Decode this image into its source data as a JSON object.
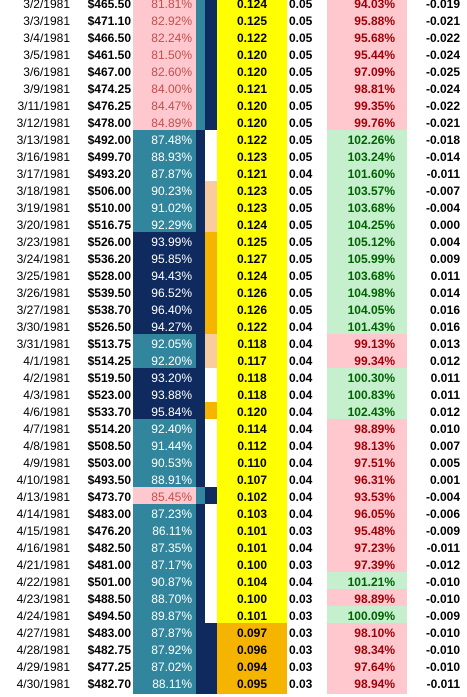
{
  "colors": {
    "pink_bg": "#ffc7ce",
    "pink_fg": "#c0504d",
    "teal_bg": "#31859c",
    "navy_bg": "#0f2a5e",
    "light_fg": "#ffffff",
    "yellow_bg": "#ffff00",
    "orange_bg": "#f4b400",
    "peach_bg": "#f8cba0",
    "green_bg": "#c6efce",
    "green_fg": "#006100",
    "red_fg": "#9c0006",
    "white": "#ffffff",
    "black": "#000000"
  },
  "rows": [
    {
      "date": "3/2/1981",
      "price": "$465.50",
      "pct": "81.81%",
      "pctStyle": "pink",
      "band1": "teal",
      "band2": "navy",
      "ratio": "0.124",
      "ratioStyle": "yellow",
      "small": "0.05",
      "pct2": "94.03%",
      "pct2Style": "pink",
      "delta": "-0.019"
    },
    {
      "date": "3/3/1981",
      "price": "$471.10",
      "pct": "82.92%",
      "pctStyle": "pink",
      "band1": "teal",
      "band2": "navy",
      "ratio": "0.125",
      "ratioStyle": "yellow",
      "small": "0.05",
      "pct2": "95.88%",
      "pct2Style": "pink",
      "delta": "-0.021"
    },
    {
      "date": "3/4/1981",
      "price": "$466.50",
      "pct": "82.24%",
      "pctStyle": "pink",
      "band1": "teal",
      "band2": "navy",
      "ratio": "0.122",
      "ratioStyle": "yellow",
      "small": "0.05",
      "pct2": "95.68%",
      "pct2Style": "pink",
      "delta": "-0.022"
    },
    {
      "date": "3/5/1981",
      "price": "$461.50",
      "pct": "81.50%",
      "pctStyle": "pink",
      "band1": "teal",
      "band2": "navy",
      "ratio": "0.120",
      "ratioStyle": "yellow",
      "small": "0.05",
      "pct2": "95.44%",
      "pct2Style": "pink",
      "delta": "-0.024"
    },
    {
      "date": "3/6/1981",
      "price": "$467.00",
      "pct": "82.60%",
      "pctStyle": "pink",
      "band1": "teal",
      "band2": "navy",
      "ratio": "0.120",
      "ratioStyle": "yellow",
      "small": "0.05",
      "pct2": "97.09%",
      "pct2Style": "pink",
      "delta": "-0.025"
    },
    {
      "date": "3/9/1981",
      "price": "$474.25",
      "pct": "84.00%",
      "pctStyle": "pink",
      "band1": "teal",
      "band2": "navy",
      "ratio": "0.121",
      "ratioStyle": "yellow",
      "small": "0.05",
      "pct2": "98.81%",
      "pct2Style": "pink",
      "delta": "-0.024"
    },
    {
      "date": "3/11/1981",
      "price": "$476.25",
      "pct": "84.47%",
      "pctStyle": "pink",
      "band1": "teal",
      "band2": "navy",
      "ratio": "0.120",
      "ratioStyle": "yellow",
      "small": "0.05",
      "pct2": "99.35%",
      "pct2Style": "pink",
      "delta": "-0.022"
    },
    {
      "date": "3/12/1981",
      "price": "$478.00",
      "pct": "84.89%",
      "pctStyle": "pink",
      "band1": "teal",
      "band2": "navy",
      "ratio": "0.120",
      "ratioStyle": "yellow",
      "small": "0.05",
      "pct2": "99.76%",
      "pct2Style": "pink",
      "delta": "-0.021"
    },
    {
      "date": "3/13/1981",
      "price": "$492.00",
      "pct": "87.48%",
      "pctStyle": "teal",
      "band1": "navy",
      "band2": "white",
      "ratio": "0.122",
      "ratioStyle": "yellow",
      "small": "0.05",
      "pct2": "102.26%",
      "pct2Style": "green",
      "delta": "-0.018"
    },
    {
      "date": "3/16/1981",
      "price": "$499.70",
      "pct": "88.93%",
      "pctStyle": "teal",
      "band1": "navy",
      "band2": "white",
      "ratio": "0.123",
      "ratioStyle": "yellow",
      "small": "0.05",
      "pct2": "103.24%",
      "pct2Style": "green",
      "delta": "-0.014"
    },
    {
      "date": "3/17/1981",
      "price": "$493.20",
      "pct": "87.87%",
      "pctStyle": "teal",
      "band1": "navy",
      "band2": "white",
      "ratio": "0.121",
      "ratioStyle": "yellow",
      "small": "0.04",
      "pct2": "101.60%",
      "pct2Style": "green",
      "delta": "-0.011"
    },
    {
      "date": "3/18/1981",
      "price": "$506.00",
      "pct": "90.23%",
      "pctStyle": "teal",
      "band1": "navy",
      "band2": "peach",
      "ratio": "0.123",
      "ratioStyle": "yellow",
      "small": "0.05",
      "pct2": "103.57%",
      "pct2Style": "green",
      "delta": "-0.007"
    },
    {
      "date": "3/19/1981",
      "price": "$510.00",
      "pct": "91.02%",
      "pctStyle": "teal",
      "band1": "navy",
      "band2": "peach",
      "ratio": "0.123",
      "ratioStyle": "yellow",
      "small": "0.05",
      "pct2": "103.68%",
      "pct2Style": "green",
      "delta": "-0.004"
    },
    {
      "date": "3/20/1981",
      "price": "$516.75",
      "pct": "92.29%",
      "pctStyle": "teal",
      "band1": "navy",
      "band2": "peach",
      "ratio": "0.124",
      "ratioStyle": "yellow",
      "small": "0.05",
      "pct2": "104.25%",
      "pct2Style": "green",
      "delta": "0.000"
    },
    {
      "date": "3/23/1981",
      "price": "$526.00",
      "pct": "93.99%",
      "pctStyle": "navy",
      "band1": "navy",
      "band2": "orange",
      "ratio": "0.125",
      "ratioStyle": "yellow",
      "small": "0.05",
      "pct2": "105.12%",
      "pct2Style": "green",
      "delta": "0.004"
    },
    {
      "date": "3/24/1981",
      "price": "$536.20",
      "pct": "95.85%",
      "pctStyle": "navy",
      "band1": "navy",
      "band2": "orange",
      "ratio": "0.127",
      "ratioStyle": "yellow",
      "small": "0.05",
      "pct2": "105.99%",
      "pct2Style": "green",
      "delta": "0.009"
    },
    {
      "date": "3/25/1981",
      "price": "$528.00",
      "pct": "94.43%",
      "pctStyle": "navy",
      "band1": "navy",
      "band2": "orange",
      "ratio": "0.124",
      "ratioStyle": "yellow",
      "small": "0.05",
      "pct2": "103.68%",
      "pct2Style": "green",
      "delta": "0.011"
    },
    {
      "date": "3/26/1981",
      "price": "$539.50",
      "pct": "96.52%",
      "pctStyle": "navy",
      "band1": "navy",
      "band2": "orange",
      "ratio": "0.126",
      "ratioStyle": "yellow",
      "small": "0.05",
      "pct2": "104.98%",
      "pct2Style": "green",
      "delta": "0.014"
    },
    {
      "date": "3/27/1981",
      "price": "$538.70",
      "pct": "96.40%",
      "pctStyle": "navy",
      "band1": "navy",
      "band2": "orange",
      "ratio": "0.126",
      "ratioStyle": "yellow",
      "small": "0.05",
      "pct2": "104.05%",
      "pct2Style": "green",
      "delta": "0.016"
    },
    {
      "date": "3/30/1981",
      "price": "$526.50",
      "pct": "94.27%",
      "pctStyle": "navy",
      "band1": "navy",
      "band2": "orange",
      "ratio": "0.122",
      "ratioStyle": "yellow",
      "small": "0.04",
      "pct2": "101.43%",
      "pct2Style": "green",
      "delta": "0.016"
    },
    {
      "date": "3/31/1981",
      "price": "$513.75",
      "pct": "92.05%",
      "pctStyle": "teal",
      "band1": "navy",
      "band2": "peach",
      "ratio": "0.118",
      "ratioStyle": "yellow",
      "small": "0.04",
      "pct2": "99.13%",
      "pct2Style": "pink",
      "delta": "0.013"
    },
    {
      "date": "4/1/1981",
      "price": "$514.25",
      "pct": "92.20%",
      "pctStyle": "teal",
      "band1": "navy",
      "band2": "peach",
      "ratio": "0.117",
      "ratioStyle": "yellow",
      "small": "0.04",
      "pct2": "99.34%",
      "pct2Style": "pink",
      "delta": "0.012"
    },
    {
      "date": "4/2/1981",
      "price": "$519.50",
      "pct": "93.20%",
      "pctStyle": "navy",
      "band1": "navy",
      "band2": "white",
      "ratio": "0.118",
      "ratioStyle": "yellow",
      "small": "0.04",
      "pct2": "100.30%",
      "pct2Style": "green",
      "delta": "0.011"
    },
    {
      "date": "4/3/1981",
      "price": "$523.00",
      "pct": "93.88%",
      "pctStyle": "navy",
      "band1": "navy",
      "band2": "white",
      "ratio": "0.118",
      "ratioStyle": "yellow",
      "small": "0.04",
      "pct2": "100.83%",
      "pct2Style": "green",
      "delta": "0.011"
    },
    {
      "date": "4/6/1981",
      "price": "$533.70",
      "pct": "95.84%",
      "pctStyle": "navy",
      "band1": "navy",
      "band2": "orange",
      "ratio": "0.120",
      "ratioStyle": "yellow",
      "small": "0.04",
      "pct2": "102.43%",
      "pct2Style": "green",
      "delta": "0.012"
    },
    {
      "date": "4/7/1981",
      "price": "$514.20",
      "pct": "92.40%",
      "pctStyle": "teal",
      "band1": "navy",
      "band2": "white",
      "ratio": "0.114",
      "ratioStyle": "yellow",
      "small": "0.04",
      "pct2": "98.89%",
      "pct2Style": "pink",
      "delta": "0.010"
    },
    {
      "date": "4/8/1981",
      "price": "$508.50",
      "pct": "91.44%",
      "pctStyle": "teal",
      "band1": "navy",
      "band2": "white",
      "ratio": "0.112",
      "ratioStyle": "yellow",
      "small": "0.04",
      "pct2": "98.13%",
      "pct2Style": "pink",
      "delta": "0.007"
    },
    {
      "date": "4/9/1981",
      "price": "$503.00",
      "pct": "90.53%",
      "pctStyle": "teal",
      "band1": "navy",
      "band2": "white",
      "ratio": "0.110",
      "ratioStyle": "yellow",
      "small": "0.04",
      "pct2": "97.51%",
      "pct2Style": "pink",
      "delta": "0.005"
    },
    {
      "date": "4/10/1981",
      "price": "$493.50",
      "pct": "88.91%",
      "pctStyle": "teal",
      "band1": "navy",
      "band2": "white",
      "ratio": "0.107",
      "ratioStyle": "yellow",
      "small": "0.04",
      "pct2": "96.31%",
      "pct2Style": "pink",
      "delta": "0.001"
    },
    {
      "date": "4/13/1981",
      "price": "$473.70",
      "pct": "85.45%",
      "pctStyle": "pink",
      "band1": "teal",
      "band2": "navy",
      "ratio": "0.102",
      "ratioStyle": "yellow",
      "small": "0.04",
      "pct2": "93.53%",
      "pct2Style": "pink",
      "delta": "-0.004"
    },
    {
      "date": "4/14/1981",
      "price": "$483.00",
      "pct": "87.23%",
      "pctStyle": "teal",
      "band1": "navy",
      "band2": "white",
      "ratio": "0.103",
      "ratioStyle": "yellow",
      "small": "0.04",
      "pct2": "96.05%",
      "pct2Style": "pink",
      "delta": "-0.006"
    },
    {
      "date": "4/15/1981",
      "price": "$476.20",
      "pct": "86.11%",
      "pctStyle": "teal",
      "band1": "navy",
      "band2": "white",
      "ratio": "0.101",
      "ratioStyle": "yellow",
      "small": "0.03",
      "pct2": "95.48%",
      "pct2Style": "pink",
      "delta": "-0.009"
    },
    {
      "date": "4/16/1981",
      "price": "$482.50",
      "pct": "87.35%",
      "pctStyle": "teal",
      "band1": "navy",
      "band2": "white",
      "ratio": "0.101",
      "ratioStyle": "yellow",
      "small": "0.04",
      "pct2": "97.23%",
      "pct2Style": "pink",
      "delta": "-0.011"
    },
    {
      "date": "4/21/1981",
      "price": "$481.00",
      "pct": "87.17%",
      "pctStyle": "teal",
      "band1": "navy",
      "band2": "white",
      "ratio": "0.100",
      "ratioStyle": "yellow",
      "small": "0.03",
      "pct2": "97.39%",
      "pct2Style": "pink",
      "delta": "-0.012"
    },
    {
      "date": "4/22/1981",
      "price": "$501.00",
      "pct": "90.87%",
      "pctStyle": "teal",
      "band1": "navy",
      "band2": "white",
      "ratio": "0.104",
      "ratioStyle": "yellow",
      "small": "0.04",
      "pct2": "101.21%",
      "pct2Style": "green",
      "delta": "-0.010"
    },
    {
      "date": "4/23/1981",
      "price": "$488.50",
      "pct": "88.70%",
      "pctStyle": "teal",
      "band1": "navy",
      "band2": "white",
      "ratio": "0.100",
      "ratioStyle": "yellow",
      "small": "0.03",
      "pct2": "98.89%",
      "pct2Style": "pink",
      "delta": "-0.010"
    },
    {
      "date": "4/24/1981",
      "price": "$494.50",
      "pct": "89.87%",
      "pctStyle": "teal",
      "band1": "navy",
      "band2": "white",
      "ratio": "0.101",
      "ratioStyle": "yellow",
      "small": "0.03",
      "pct2": "100.09%",
      "pct2Style": "green",
      "delta": "-0.009"
    },
    {
      "date": "4/27/1981",
      "price": "$483.00",
      "pct": "87.87%",
      "pctStyle": "teal",
      "band1": "navy",
      "band2": "navy",
      "ratio": "0.097",
      "ratioStyle": "orange",
      "small": "0.03",
      "pct2": "98.10%",
      "pct2Style": "pink",
      "delta": "-0.010"
    },
    {
      "date": "4/28/1981",
      "price": "$482.75",
      "pct": "87.92%",
      "pctStyle": "teal",
      "band1": "navy",
      "band2": "navy",
      "ratio": "0.096",
      "ratioStyle": "orange",
      "small": "0.03",
      "pct2": "98.34%",
      "pct2Style": "pink",
      "delta": "-0.010"
    },
    {
      "date": "4/29/1981",
      "price": "$477.25",
      "pct": "87.02%",
      "pctStyle": "teal",
      "band1": "navy",
      "band2": "navy",
      "ratio": "0.094",
      "ratioStyle": "orange",
      "small": "0.03",
      "pct2": "97.64%",
      "pct2Style": "pink",
      "delta": "-0.010"
    },
    {
      "date": "4/30/1981",
      "price": "$482.70",
      "pct": "88.11%",
      "pctStyle": "teal",
      "band1": "navy",
      "band2": "navy",
      "ratio": "0.095",
      "ratioStyle": "orange",
      "small": "0.03",
      "pct2": "98.94%",
      "pct2Style": "pink",
      "delta": "-0.011"
    }
  ]
}
